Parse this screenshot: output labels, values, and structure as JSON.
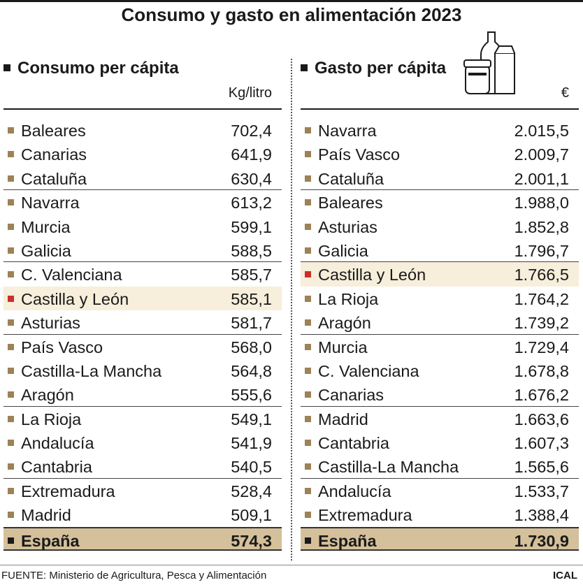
{
  "title": "Consumo y gasto en alimentación 2023",
  "left": {
    "heading": "Consumo per cápita",
    "unit": "Kg/litro",
    "rows": [
      {
        "name": "Baleares",
        "value": "702,4"
      },
      {
        "name": "Canarias",
        "value": "641,9"
      },
      {
        "name": "Cataluña",
        "value": "630,4"
      },
      {
        "name": "Navarra",
        "value": "613,2"
      },
      {
        "name": "Murcia",
        "value": "599,1"
      },
      {
        "name": "Galicia",
        "value": "588,5"
      },
      {
        "name": "C. Valenciana",
        "value": "585,7"
      },
      {
        "name": "Castilla y León",
        "value": "585,1"
      },
      {
        "name": "Asturias",
        "value": "581,7"
      },
      {
        "name": "País Vasco",
        "value": "568,0"
      },
      {
        "name": "Castilla-La Mancha",
        "value": "564,8"
      },
      {
        "name": "Aragón",
        "value": "555,6"
      },
      {
        "name": "La Rioja",
        "value": "549,1"
      },
      {
        "name": "Andalucía",
        "value": "541,9"
      },
      {
        "name": "Cantabria",
        "value": "540,5"
      },
      {
        "name": "Extremadura",
        "value": "528,4"
      },
      {
        "name": "Madrid",
        "value": "509,1"
      }
    ],
    "total": {
      "name": "España",
      "value": "574,3"
    }
  },
  "right": {
    "heading": "Gasto per cápita",
    "unit": "€",
    "rows": [
      {
        "name": "Navarra",
        "value": "2.015,5"
      },
      {
        "name": "País Vasco",
        "value": "2.009,7"
      },
      {
        "name": "Cataluña",
        "value": "2.001,1"
      },
      {
        "name": "Baleares",
        "value": "1.988,0"
      },
      {
        "name": "Asturias",
        "value": "1.852,8"
      },
      {
        "name": "Galicia",
        "value": "1.796,7"
      },
      {
        "name": "Castilla y León",
        "value": "1.766,5"
      },
      {
        "name": "La Rioja",
        "value": "1.764,2"
      },
      {
        "name": "Aragón",
        "value": "1.739,2"
      },
      {
        "name": "Murcia",
        "value": "1.729,4"
      },
      {
        "name": "C. Valenciana",
        "value": "1.678,8"
      },
      {
        "name": "Canarias",
        "value": "1.676,2"
      },
      {
        "name": "Madrid",
        "value": "1.663,6"
      },
      {
        "name": "Cantabria",
        "value": "1.607,3"
      },
      {
        "name": "Castilla-La Mancha",
        "value": "1.565,6"
      },
      {
        "name": "Andalucía",
        "value": "1.533,7"
      },
      {
        "name": "Extremadura",
        "value": "1.388,4"
      }
    ],
    "total": {
      "name": "España",
      "value": "1.730,9"
    }
  },
  "highlight_name": "Castilla y León",
  "footer": "FUENTE: Ministerio de Agricultura, Pesca y Alimentación",
  "credit": "ICAL",
  "icon": "grocery-jar-bottle-carton-icon",
  "colors": {
    "bullet": "#9a8456",
    "highlight_bullet": "#c9302c",
    "highlight_row": "#f7eedb",
    "total_row": "#d4c09a"
  },
  "chart_data": [
    {
      "type": "table",
      "title": "Consumo per cápita",
      "unit": "Kg/litro",
      "categories": [
        "Baleares",
        "Canarias",
        "Cataluña",
        "Navarra",
        "Murcia",
        "Galicia",
        "C. Valenciana",
        "Castilla y León",
        "Asturias",
        "País Vasco",
        "Castilla-La Mancha",
        "Aragón",
        "La Rioja",
        "Andalucía",
        "Cantabria",
        "Extremadura",
        "Madrid",
        "España"
      ],
      "values": [
        702.4,
        641.9,
        630.4,
        613.2,
        599.1,
        588.5,
        585.7,
        585.1,
        581.7,
        568.0,
        564.8,
        555.6,
        549.1,
        541.9,
        540.5,
        528.4,
        509.1,
        574.3
      ]
    },
    {
      "type": "table",
      "title": "Gasto per cápita",
      "unit": "€",
      "categories": [
        "Navarra",
        "País Vasco",
        "Cataluña",
        "Baleares",
        "Asturias",
        "Galicia",
        "Castilla y León",
        "La Rioja",
        "Aragón",
        "Murcia",
        "C. Valenciana",
        "Canarias",
        "Madrid",
        "Cantabria",
        "Castilla-La Mancha",
        "Andalucía",
        "Extremadura",
        "España"
      ],
      "values": [
        2015.5,
        2009.7,
        2001.1,
        1988.0,
        1852.8,
        1796.7,
        1766.5,
        1764.2,
        1739.2,
        1729.4,
        1678.8,
        1676.2,
        1663.6,
        1607.3,
        1565.6,
        1533.7,
        1388.4,
        1730.9
      ]
    }
  ]
}
